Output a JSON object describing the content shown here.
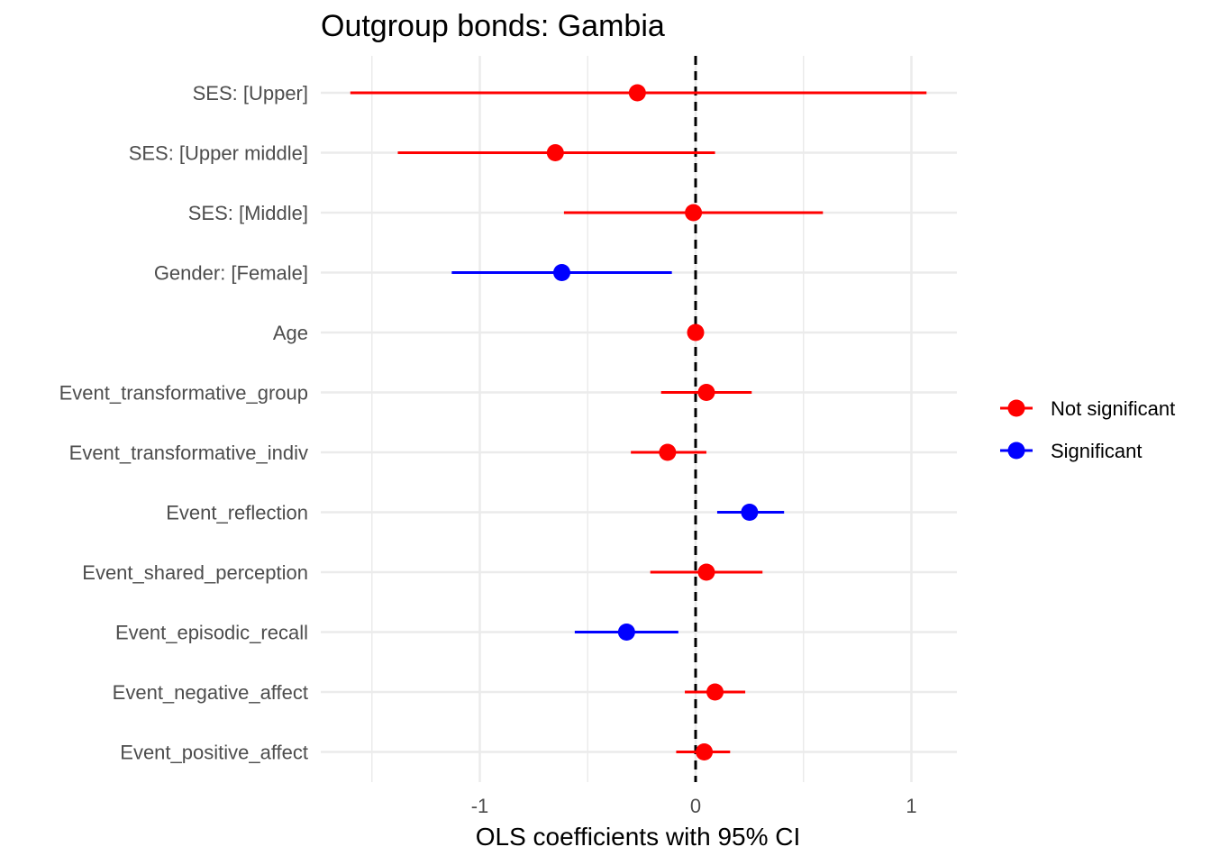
{
  "chart_data": {
    "type": "scatter",
    "title": "Outgroup bonds: Gambia",
    "xlabel": "OLS coefficients with 95% CI",
    "ylabel": "",
    "xlim": [
      -1.8,
      1.2
    ],
    "xticks": [
      -1,
      0,
      1
    ],
    "xtick_labels": [
      "-1",
      "0",
      "1"
    ],
    "reference_line": 0,
    "grid": true,
    "legend_position": "right",
    "legend": [
      {
        "name": "Not significant",
        "color": "#ff0000"
      },
      {
        "name": "Significant",
        "color": "#0000ff"
      }
    ],
    "terms": [
      {
        "label": "SES:  [Upper]",
        "estimate": -0.27,
        "ci_low": -1.6,
        "ci_high": 1.07,
        "significant": false
      },
      {
        "label": "SES:  [Upper middle]",
        "estimate": -0.65,
        "ci_low": -1.38,
        "ci_high": 0.09,
        "significant": false
      },
      {
        "label": "SES:  [Middle]",
        "estimate": -0.01,
        "ci_low": -0.61,
        "ci_high": 0.59,
        "significant": false
      },
      {
        "label": "Gender:  [Female]",
        "estimate": -0.62,
        "ci_low": -1.13,
        "ci_high": -0.11,
        "significant": true
      },
      {
        "label": "Age",
        "estimate": 0.0,
        "ci_low": -0.01,
        "ci_high": 0.01,
        "significant": false
      },
      {
        "label": "Event_transformative_group",
        "estimate": 0.05,
        "ci_low": -0.16,
        "ci_high": 0.26,
        "significant": false
      },
      {
        "label": "Event_transformative_indiv",
        "estimate": -0.13,
        "ci_low": -0.3,
        "ci_high": 0.05,
        "significant": false
      },
      {
        "label": "Event_reflection",
        "estimate": 0.25,
        "ci_low": 0.1,
        "ci_high": 0.41,
        "significant": true
      },
      {
        "label": "Event_shared_perception",
        "estimate": 0.05,
        "ci_low": -0.21,
        "ci_high": 0.31,
        "significant": false
      },
      {
        "label": "Event_episodic_recall",
        "estimate": -0.32,
        "ci_low": -0.56,
        "ci_high": -0.08,
        "significant": true
      },
      {
        "label": "Event_negative_affect",
        "estimate": 0.09,
        "ci_low": -0.05,
        "ci_high": 0.23,
        "significant": false
      },
      {
        "label": "Event_positive_affect",
        "estimate": 0.04,
        "ci_low": -0.09,
        "ci_high": 0.16,
        "significant": false
      }
    ]
  }
}
